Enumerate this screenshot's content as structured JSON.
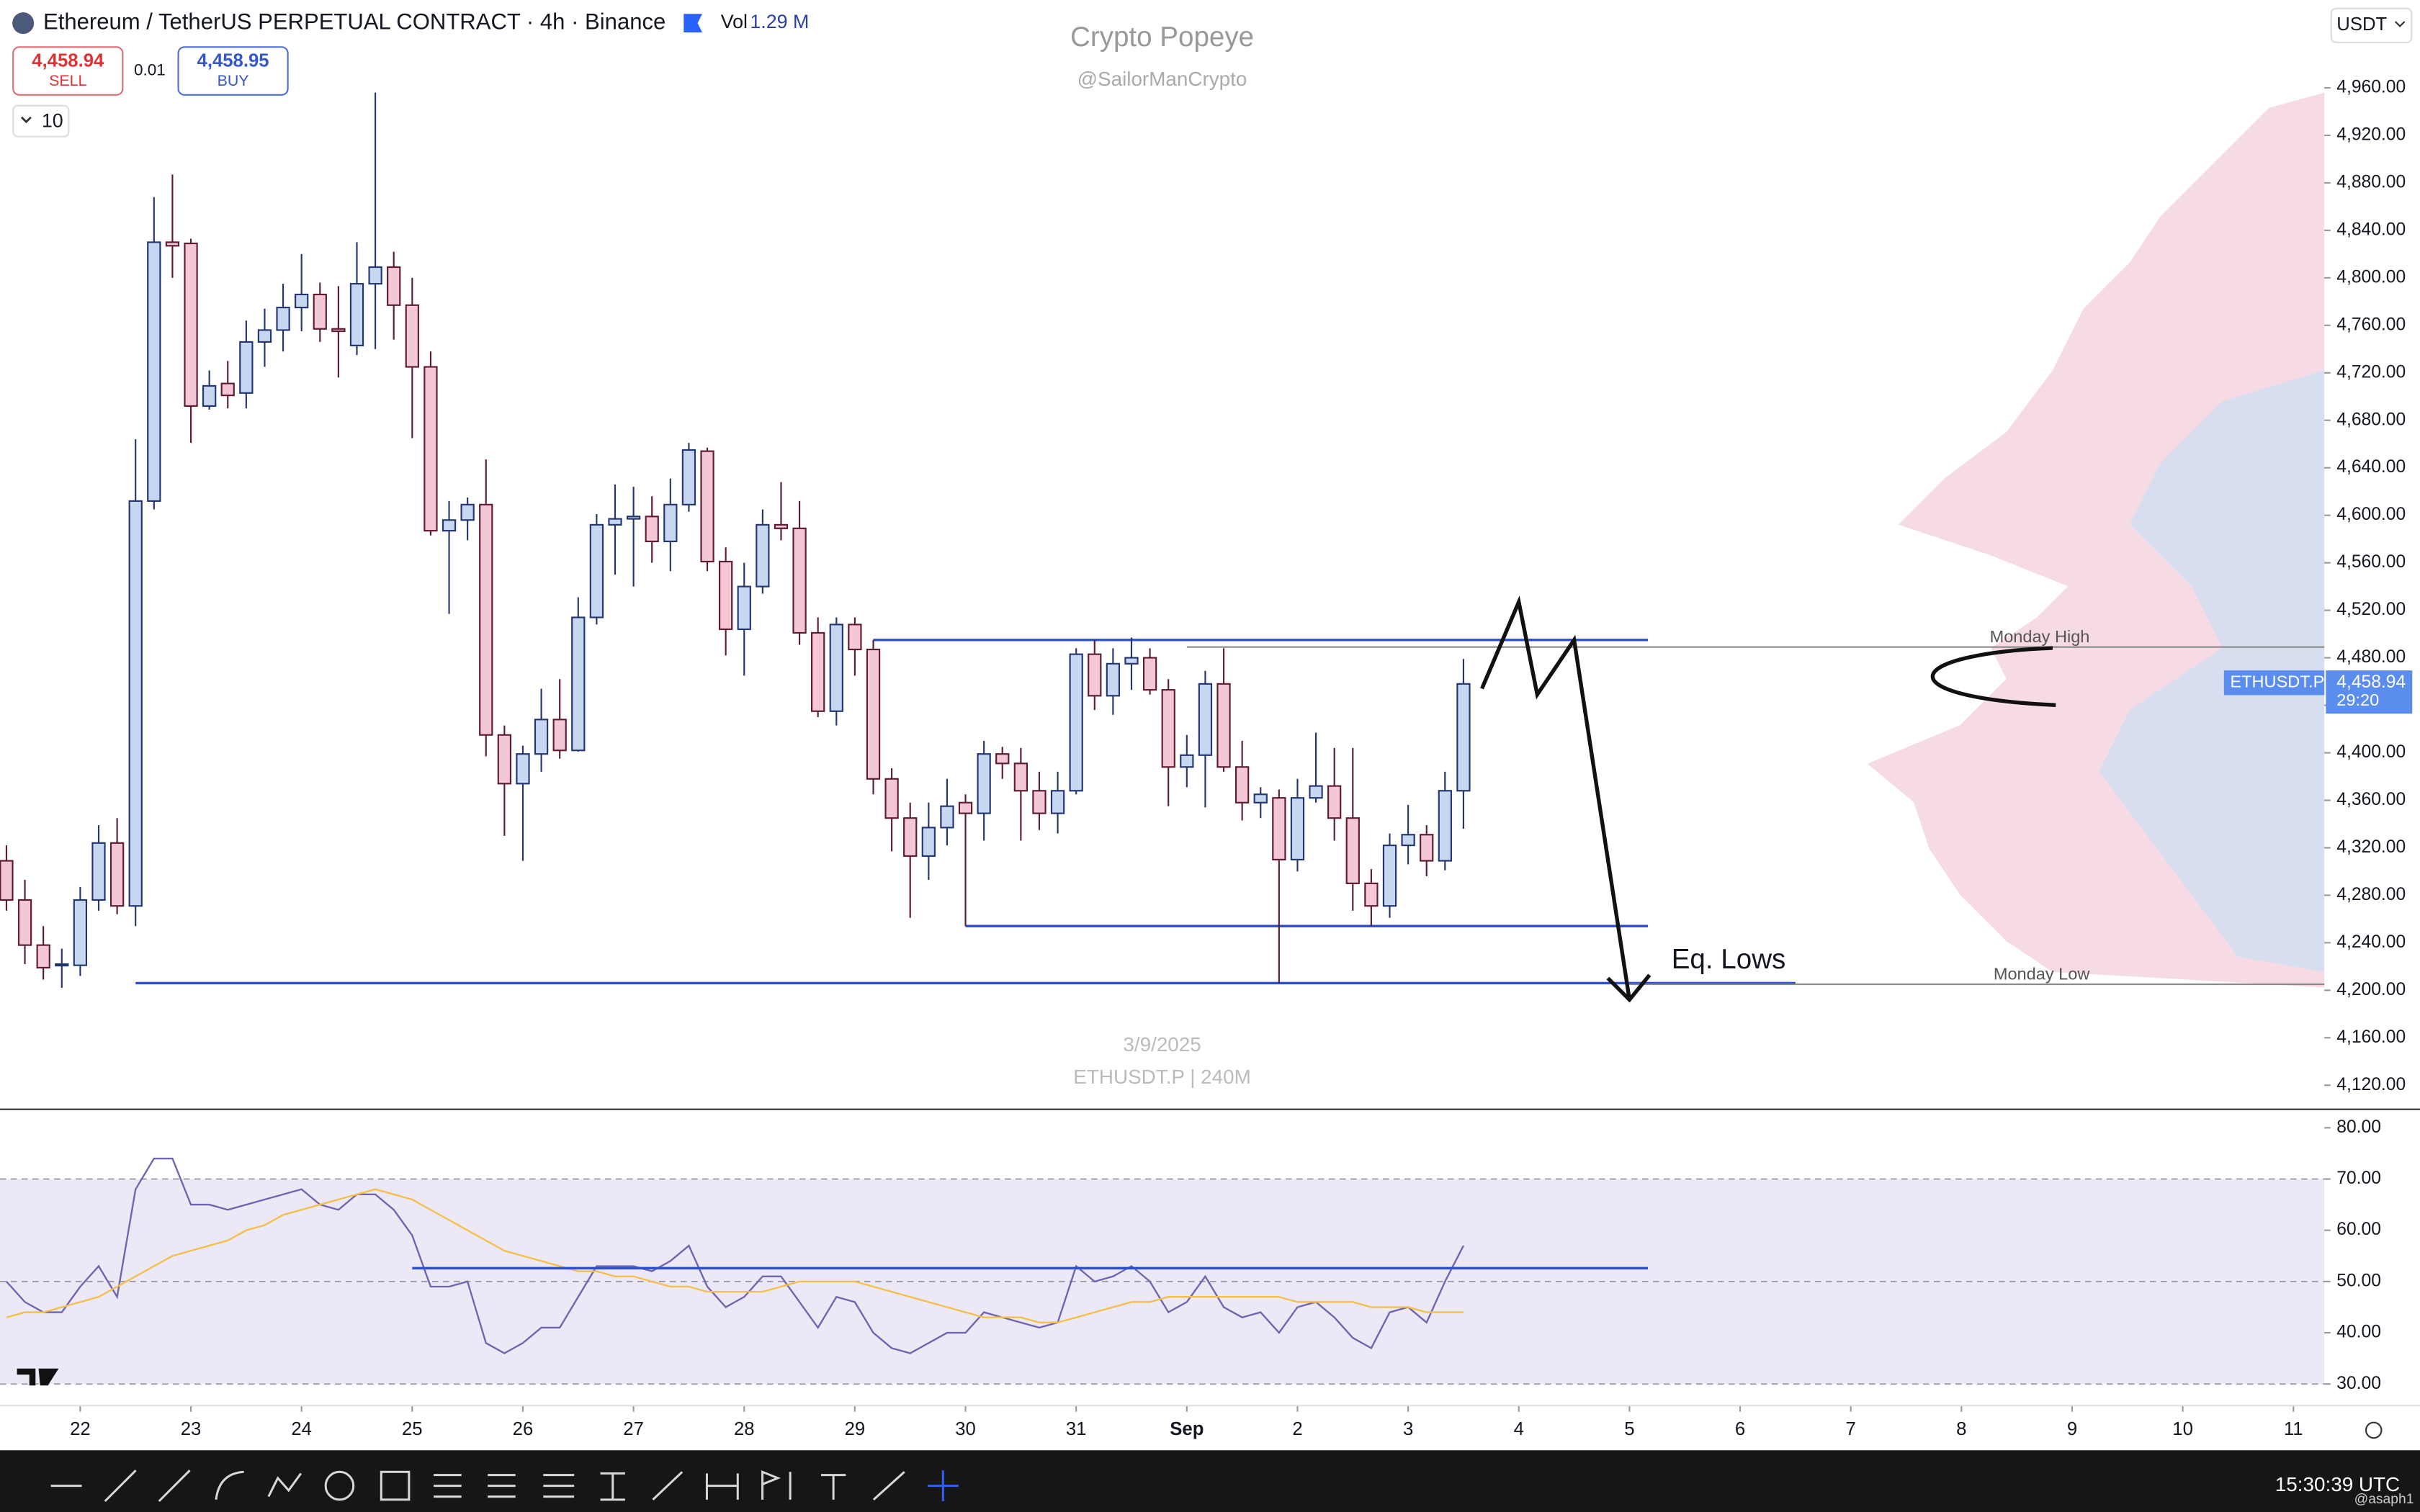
{
  "header": {
    "title": "Ethereum / TetherUS PERPETUAL CONTRACT · 4h · Binance",
    "vol_label": "Vol",
    "vol_value": "1.29 M",
    "sell_price": "4,458.94",
    "sell": "SELL",
    "spread": "0.01",
    "buy_price": "4,458.95",
    "buy": "BUY",
    "interval_count": "10",
    "currency": "USDT",
    "watermark": "Crypto Popeye",
    "watermark_handle": "@SailorManCrypto",
    "date_watermark": "3/9/2025",
    "symbol_watermark": "ETHUSDT.P | 240M",
    "clock": "15:30:39 UTC",
    "user": "@asaph1"
  },
  "chart_data": [
    {
      "type": "candlestick",
      "x": [
        -16,
        -12,
        -8,
        -4,
        0,
        4,
        8,
        12,
        16,
        20,
        24,
        28,
        32,
        36,
        40,
        44,
        48,
        52,
        56,
        60,
        64,
        68,
        72,
        76,
        80,
        84,
        88,
        92,
        96,
        100,
        104,
        108,
        112,
        116,
        120,
        124,
        128,
        132,
        136,
        140,
        144,
        148,
        152,
        156,
        160,
        164,
        168,
        172,
        176,
        180,
        184,
        188,
        192,
        196,
        200,
        204,
        208,
        212,
        216,
        220,
        224,
        228,
        232,
        236,
        240,
        244,
        248,
        252,
        256,
        260,
        264,
        268,
        272,
        276,
        280,
        284,
        288,
        292,
        296,
        300
      ],
      "open": [
        4309,
        4276,
        4238,
        4221,
        4221,
        4276,
        4324,
        4271,
        4612,
        4830,
        4829,
        4692,
        4711,
        4703,
        4746,
        4756,
        4775,
        4786,
        4757,
        4743,
        4795,
        4809,
        4777,
        4725,
        4587,
        4596,
        4609,
        4415,
        4374,
        4399,
        4428,
        4402,
        4514,
        4592,
        4597,
        4599,
        4578,
        4609,
        4654,
        4561,
        4504,
        4540,
        4592,
        4589,
        4501,
        4435,
        4508,
        4487,
        4378,
        4345,
        4313,
        4337,
        4358,
        4349,
        4399,
        4391,
        4368,
        4349,
        4368,
        4483,
        4448,
        4475,
        4480,
        4453,
        4388,
        4398,
        4458,
        4388,
        4358,
        4362,
        4310,
        4362,
        4372,
        4345,
        4290,
        4271,
        4322,
        4331,
        4309,
        4368
      ],
      "high": [
        4322,
        4293,
        4254,
        4235,
        4287,
        4339,
        4345,
        4664,
        4868,
        4887,
        4833,
        4722,
        4730,
        4764,
        4774,
        4795,
        4820,
        4796,
        4793,
        4830,
        4956,
        4822,
        4800,
        4738,
        4612,
        4615,
        4647,
        4423,
        4406,
        4454,
        4462,
        4531,
        4601,
        4626,
        4624,
        4616,
        4631,
        4661,
        4657,
        4573,
        4560,
        4605,
        4628,
        4612,
        4514,
        4514,
        4514,
        4495,
        4387,
        4358,
        4358,
        4378,
        4365,
        4410,
        4405,
        4404,
        4384,
        4384,
        4488,
        4495,
        4488,
        4497,
        4488,
        4462,
        4415,
        4469,
        4488,
        4410,
        4371,
        4369,
        4378,
        4417,
        4404,
        4404,
        4302,
        4332,
        4356,
        4339,
        4384,
        4479
      ],
      "low": [
        4267,
        4222,
        4209,
        4202,
        4212,
        4267,
        4264,
        4254,
        4605,
        4800,
        4661,
        4689,
        4690,
        4690,
        4725,
        4738,
        4755,
        4746,
        4716,
        4735,
        4740,
        4748,
        4665,
        4583,
        4517,
        4579,
        4397,
        4330,
        4309,
        4384,
        4395,
        4401,
        4508,
        4550,
        4540,
        4560,
        4553,
        4603,
        4553,
        4482,
        4465,
        4534,
        4579,
        4491,
        4430,
        4423,
        4465,
        4365,
        4317,
        4261,
        4293,
        4322,
        4254,
        4326,
        4378,
        4326,
        4335,
        4332,
        4365,
        4436,
        4432,
        4453,
        4449,
        4355,
        4371,
        4354,
        4384,
        4343,
        4345,
        4206,
        4300,
        4358,
        4326,
        4267,
        4254,
        4261,
        4306,
        4296,
        4301,
        4336
      ],
      "close": [
        4276,
        4238,
        4219,
        4222,
        4276,
        4324,
        4271,
        4612,
        4830,
        4827,
        4692,
        4709,
        4701,
        4746,
        4756,
        4775,
        4786,
        4757,
        4755,
        4795,
        4809,
        4777,
        4725,
        4587,
        4596,
        4609,
        4415,
        4374,
        4399,
        4428,
        4402,
        4514,
        4592,
        4597,
        4599,
        4578,
        4609,
        4655,
        4561,
        4504,
        4540,
        4592,
        4589,
        4501,
        4435,
        4508,
        4487,
        4378,
        4345,
        4313,
        4337,
        4355,
        4349,
        4399,
        4391,
        4368,
        4349,
        4368,
        4483,
        4448,
        4475,
        4480,
        4453,
        4388,
        4398,
        4458,
        4388,
        4358,
        4365,
        4310,
        4362,
        4372,
        4345,
        4290,
        4271,
        4322,
        4331,
        4309,
        4368,
        4458
      ],
      "up_color": "#c7d7f2",
      "down_color": "#f3c7d6",
      "xlim": [
        -17.4,
        486.7
      ],
      "ylim": [
        4101,
        5034
      ],
      "yticks": [
        {
          "value": 4120,
          "label": "4,120.00"
        },
        {
          "value": 4160,
          "label": "4,160.00"
        },
        {
          "value": 4200,
          "label": "4,200.00"
        },
        {
          "value": 4240,
          "label": "4,240.00"
        },
        {
          "value": 4280,
          "label": "4,280.00"
        },
        {
          "value": 4320,
          "label": "4,320.00"
        },
        {
          "value": 4360,
          "label": "4,360.00"
        },
        {
          "value": 4400,
          "label": "4,400.00"
        },
        {
          "value": 4440,
          "label": "4,440.00"
        },
        {
          "value": 4480,
          "label": "4,480.00"
        },
        {
          "value": 4520,
          "label": "4,520.00"
        },
        {
          "value": 4560,
          "label": "4,560.00"
        },
        {
          "value": 4600,
          "label": "4,600.00"
        },
        {
          "value": 4640,
          "label": "4,640.00"
        },
        {
          "value": 4680,
          "label": "4,680.00"
        },
        {
          "value": 4720,
          "label": "4,720.00"
        },
        {
          "value": 4760,
          "label": "4,760.00"
        },
        {
          "value": 4800,
          "label": "4,800.00"
        },
        {
          "value": 4840,
          "label": "4,840.00"
        },
        {
          "value": 4880,
          "label": "4,880.00"
        },
        {
          "value": 4920,
          "label": "4,920.00"
        },
        {
          "value": 4960,
          "label": "4,960.00"
        }
      ],
      "range_lines": [
        {
          "value": 4495,
          "x": [
            172,
            340
          ],
          "color": "#2e4fd0"
        },
        {
          "value": 4254,
          "x": [
            192,
            340
          ],
          "color": "#2e4fd0"
        },
        {
          "value": 4206,
          "x": [
            12,
            372
          ],
          "color": "#2e4fd0"
        }
      ],
      "levels": [
        {
          "name": "Monday High",
          "value": 4489,
          "from": 240
        },
        {
          "name": "Monday Low",
          "value": 4205,
          "from": 336
        }
      ],
      "projection": {
        "x": [
          304,
          312,
          316,
          324,
          336
        ],
        "y": [
          4454,
          4527,
          4449,
          4495,
          4192
        ]
      },
      "annotation": "Eq. Lows",
      "last_price": {
        "value": 4458.94,
        "label": "4,458.94",
        "symbol": "ETHUSDT.P",
        "countdown": "29:20",
        "color": "#5b8def"
      }
    },
    {
      "type": "line",
      "series": [
        {
          "color": "#6f64b0",
          "values": [
            50,
            46,
            44,
            44,
            49,
            53,
            47,
            68,
            74,
            74,
            65,
            65,
            64,
            65,
            66,
            67,
            68,
            65,
            64,
            67,
            67,
            64,
            59,
            49,
            49,
            50,
            38,
            36,
            38,
            41,
            41,
            47,
            53,
            53,
            53,
            52,
            54,
            57,
            49,
            45,
            47,
            51,
            51,
            46,
            41,
            47,
            46,
            40,
            37,
            36,
            38,
            40,
            40,
            44,
            43,
            42,
            41,
            42,
            53,
            50,
            51,
            53,
            50,
            44,
            46,
            51,
            45,
            43,
            44,
            40,
            45,
            46,
            43,
            39,
            37,
            44,
            45,
            42,
            50,
            57
          ]
        },
        {
          "color": "#f3c04c",
          "values": [
            43,
            44,
            44,
            45,
            46,
            47,
            49,
            51,
            53,
            55,
            56,
            57,
            58,
            60,
            61,
            63,
            64,
            65,
            66,
            67,
            68,
            67,
            66,
            64,
            62,
            60,
            58,
            56,
            55,
            54,
            53,
            52,
            52,
            51,
            51,
            50,
            49,
            49,
            48,
            48,
            48,
            48,
            49,
            50,
            50,
            50,
            50,
            49,
            48,
            47,
            46,
            45,
            44,
            43,
            43,
            43,
            42,
            42,
            43,
            44,
            45,
            46,
            46,
            47,
            47,
            47,
            47,
            47,
            47,
            47,
            46,
            46,
            46,
            46,
            45,
            45,
            45,
            44,
            44,
            44
          ]
        }
      ],
      "xlim": [
        -17.4,
        486.7
      ],
      "ylim": [
        26.1,
        83.3
      ],
      "yticks": [
        {
          "value": 30,
          "label": "30.00"
        },
        {
          "value": 40,
          "label": "40.00"
        },
        {
          "value": 50,
          "label": "50.00"
        },
        {
          "value": 60,
          "label": "60.00"
        },
        {
          "value": 70,
          "label": "70.00"
        },
        {
          "value": 80,
          "label": "80.00"
        }
      ],
      "band": [
        30,
        70
      ],
      "dashed_levels": [
        70,
        50,
        30
      ],
      "rsi_lines": [
        {
          "value": 52.6,
          "x": [
            72,
            340
          ],
          "color": "#2e4fd0"
        }
      ],
      "xticks": [
        {
          "value": 0,
          "label": "22"
        },
        {
          "value": 24,
          "label": "23"
        },
        {
          "value": 48,
          "label": "24"
        },
        {
          "value": 72,
          "label": "25"
        },
        {
          "value": 96,
          "label": "26"
        },
        {
          "value": 120,
          "label": "27"
        },
        {
          "value": 144,
          "label": "28"
        },
        {
          "value": 168,
          "label": "29"
        },
        {
          "value": 192,
          "label": "30"
        },
        {
          "value": 216,
          "label": "31"
        },
        {
          "value": 240,
          "label": "Sep"
        },
        {
          "value": 264,
          "label": "2"
        },
        {
          "value": 288,
          "label": "3"
        },
        {
          "value": 312,
          "label": "4"
        },
        {
          "value": 336,
          "label": "5"
        },
        {
          "value": 360,
          "label": "6"
        },
        {
          "value": 384,
          "label": "7"
        },
        {
          "value": 408,
          "label": "8"
        },
        {
          "value": 432,
          "label": "9"
        },
        {
          "value": 456,
          "label": "10"
        },
        {
          "value": 480,
          "label": "11"
        }
      ]
    }
  ]
}
